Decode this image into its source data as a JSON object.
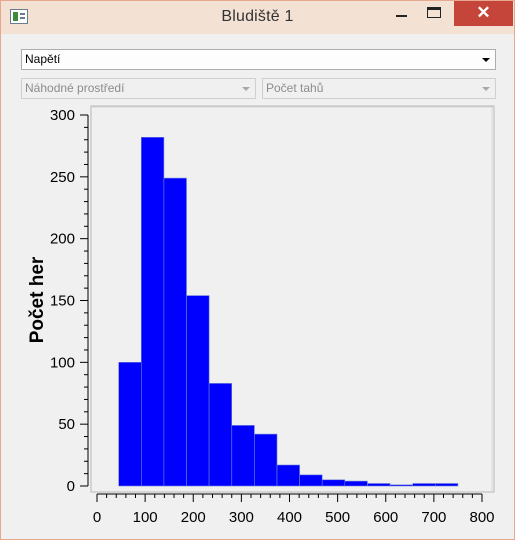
{
  "window": {
    "title": "Bludiště 1"
  },
  "controls": {
    "metric_select": "Napětí",
    "environment_select": "Náhodné prostředí",
    "moves_select": "Počet tahů"
  },
  "chart_data": {
    "type": "bar",
    "title": "",
    "xlabel": "",
    "ylabel": "Počet her",
    "xlim": [
      0,
      800
    ],
    "ylim": [
      0,
      300
    ],
    "xticks": [
      0,
      100,
      200,
      300,
      400,
      500,
      600,
      700,
      800
    ],
    "yticks": [
      0,
      50,
      100,
      150,
      200,
      250,
      300
    ],
    "bar_color": "#0000ff",
    "bins": [
      {
        "x0": 45,
        "x1": 92,
        "value": 100
      },
      {
        "x0": 92,
        "x1": 139,
        "value": 282
      },
      {
        "x0": 139,
        "x1": 186,
        "value": 249
      },
      {
        "x0": 186,
        "x1": 233,
        "value": 154
      },
      {
        "x0": 233,
        "x1": 280,
        "value": 83
      },
      {
        "x0": 280,
        "x1": 327,
        "value": 49
      },
      {
        "x0": 327,
        "x1": 374,
        "value": 42
      },
      {
        "x0": 374,
        "x1": 421,
        "value": 17
      },
      {
        "x0": 421,
        "x1": 468,
        "value": 9
      },
      {
        "x0": 468,
        "x1": 515,
        "value": 5
      },
      {
        "x0": 515,
        "x1": 562,
        "value": 4
      },
      {
        "x0": 562,
        "x1": 609,
        "value": 2
      },
      {
        "x0": 609,
        "x1": 656,
        "value": 1
      },
      {
        "x0": 656,
        "x1": 703,
        "value": 2
      },
      {
        "x0": 703,
        "x1": 750,
        "value": 2
      }
    ]
  }
}
